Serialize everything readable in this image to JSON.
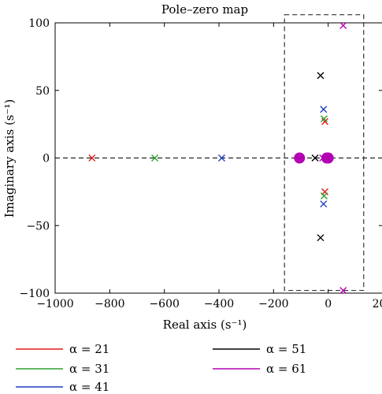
{
  "chart_data": {
    "type": "scatter",
    "title": "Pole–zero map",
    "xlabel": "Real axis (s⁻¹)",
    "ylabel": "Imaginary axis (s⁻¹)",
    "xlim": [
      -1000,
      200
    ],
    "ylim": [
      -100,
      100
    ],
    "x_ticks": [
      -1000,
      -800,
      -600,
      -400,
      -200,
      0,
      200
    ],
    "y_ticks": [
      -100,
      -50,
      0,
      50,
      100
    ],
    "x_tick_labels": [
      "−1000",
      "−800",
      "−600",
      "−400",
      "−200",
      "0",
      "200"
    ],
    "y_tick_labels": [
      "−100",
      "−50",
      "0",
      "50",
      "100"
    ],
    "grid": false,
    "zero_line": "dashed",
    "highlight_box": {
      "x": [
        -160,
        130
      ],
      "y": [
        -98,
        106
      ]
    },
    "legend_position": "bottom",
    "series": [
      {
        "name": "α = 21",
        "color": "#e41a1c",
        "poles": [
          [
            -865,
            0
          ],
          [
            -12,
            27
          ],
          [
            -12,
            -25
          ]
        ],
        "zeros": []
      },
      {
        "name": "α = 31",
        "color": "#2ca02c",
        "poles": [
          [
            -635,
            0
          ],
          [
            -15,
            29
          ],
          [
            -15,
            -28
          ]
        ],
        "zeros": []
      },
      {
        "name": "α = 41",
        "color": "#1f3fbf",
        "poles": [
          [
            -390,
            0
          ],
          [
            -17,
            36
          ],
          [
            -17,
            -34
          ]
        ],
        "zeros": []
      },
      {
        "name": "α = 51",
        "color": "#000000",
        "poles": [
          [
            -48,
            0
          ],
          [
            -28,
            61
          ],
          [
            -28,
            -59
          ]
        ],
        "zeros": []
      },
      {
        "name": "α = 61",
        "color": "#b300b3",
        "poles": [
          [
            55,
            98
          ],
          [
            55,
            -98
          ],
          [
            -20,
            0
          ]
        ],
        "zeros": [
          [
            -105,
            0
          ],
          [
            -5,
            0
          ],
          [
            0,
            0
          ]
        ]
      }
    ]
  }
}
